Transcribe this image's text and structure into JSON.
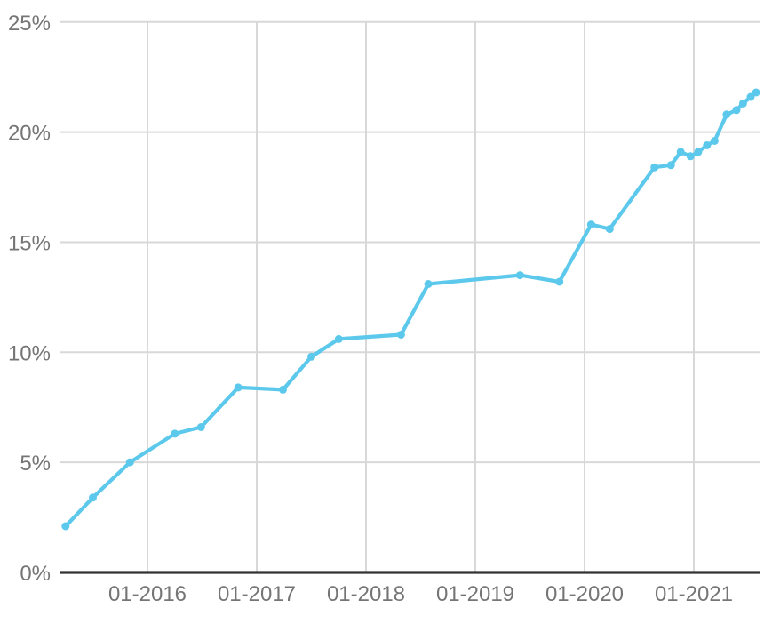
{
  "style": {
    "background": "#FFFFFF",
    "line_color": "#5CC9EC",
    "grid_color": "#D8D8D8",
    "axis_color": "#333333",
    "tick_label_color": "#757575"
  },
  "chart_data": {
    "type": "line",
    "title": "",
    "xlabel": "",
    "ylabel": "",
    "x_unit": "decimal_year",
    "xlim": [
      2015.16,
      2021.6
    ],
    "ylim": [
      0,
      25
    ],
    "grid": true,
    "legend": "none",
    "x_ticks": [
      {
        "v": 2016,
        "label": "01-2016"
      },
      {
        "v": 2017,
        "label": "01-2017"
      },
      {
        "v": 2018,
        "label": "01-2018"
      },
      {
        "v": 2019,
        "label": "01-2019"
      },
      {
        "v": 2020,
        "label": "01-2020"
      },
      {
        "v": 2021,
        "label": "01-2021"
      }
    ],
    "y_ticks": [
      {
        "v": 0,
        "label": "0%"
      },
      {
        "v": 5,
        "label": "5%"
      },
      {
        "v": 10,
        "label": "10%"
      },
      {
        "v": 15,
        "label": "15%"
      },
      {
        "v": 20,
        "label": "20%"
      },
      {
        "v": 25,
        "label": "25%"
      }
    ],
    "series": [
      {
        "name": "percentage",
        "color": "#5CC9EC",
        "points": [
          [
            2015.25,
            2.1
          ],
          [
            2015.5,
            3.4
          ],
          [
            2015.84,
            5.0
          ],
          [
            2016.25,
            6.3
          ],
          [
            2016.49,
            6.6
          ],
          [
            2016.83,
            8.4
          ],
          [
            2017.24,
            8.3
          ],
          [
            2017.5,
            9.8
          ],
          [
            2017.75,
            10.6
          ],
          [
            2018.32,
            10.8
          ],
          [
            2018.57,
            13.1
          ],
          [
            2019.41,
            13.5
          ],
          [
            2019.77,
            13.2
          ],
          [
            2020.06,
            15.8
          ],
          [
            2020.23,
            15.6
          ],
          [
            2020.64,
            18.4
          ],
          [
            2020.79,
            18.5
          ],
          [
            2020.88,
            19.1
          ],
          [
            2020.97,
            18.9
          ],
          [
            2021.04,
            19.1
          ],
          [
            2021.12,
            19.4
          ],
          [
            2021.19,
            19.6
          ],
          [
            2021.3,
            20.8
          ],
          [
            2021.39,
            21.0
          ],
          [
            2021.45,
            21.3
          ],
          [
            2021.52,
            21.6
          ],
          [
            2021.57,
            21.8
          ]
        ]
      }
    ]
  }
}
